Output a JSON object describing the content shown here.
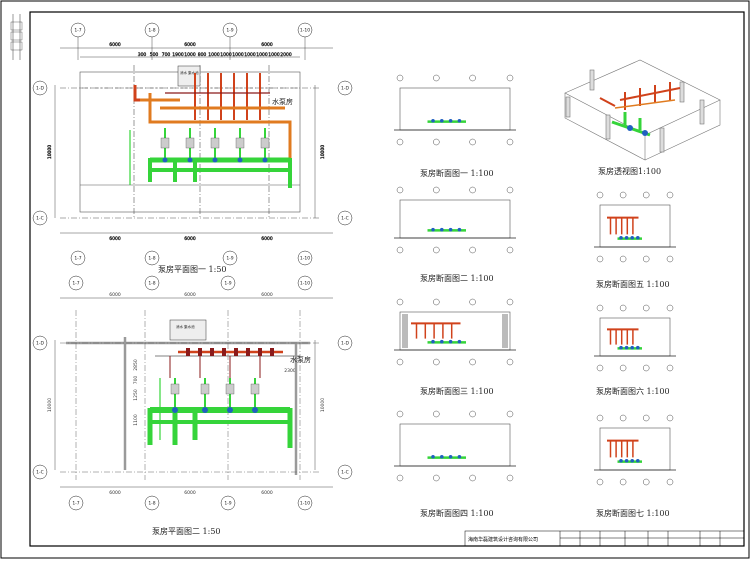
{
  "axes": {
    "plan1_top": [
      "1-7",
      "1-8",
      "1-9",
      "1-10"
    ],
    "plan1_side": [
      "1-D",
      "1-C"
    ],
    "plan2_top": [
      "1-7",
      "1-8",
      "1-9",
      "1-10"
    ],
    "plan2_side": [
      "1-D",
      "1-C"
    ]
  },
  "dims": {
    "p1_top": [
      "6000",
      "6000",
      "6000"
    ],
    "p1_sub": [
      "300",
      "500",
      "700",
      "1900",
      "1000",
      "800",
      "1000",
      "1000",
      "1000",
      "1000",
      "1000",
      "1000",
      "2000"
    ],
    "p1_left": "10000",
    "p1_right": "10000",
    "p1_bottom": [
      "6000",
      "6000",
      "6000"
    ],
    "p2_top": [
      "6000",
      "6000",
      "6000"
    ],
    "p2_left": "10000",
    "p2_right": "10000",
    "p2_bottom": [
      "6000",
      "6000",
      "6000"
    ],
    "p2_inner": [
      "2850",
      "700",
      "1250",
      "1100",
      "2300"
    ]
  },
  "room_labels": {
    "pump_room": "水泵房",
    "tank_p1": "消水\n集水池",
    "tank_p2": "消水\n集水池"
  },
  "captions": {
    "plan1": "泵房平面图一 1:50",
    "plan2": "泵房平面图二 1:50",
    "sec1": "泵房断面图一 1:100",
    "sec2": "泵房断面图二 1:100",
    "sec3": "泵房断面图三 1:100",
    "sec4": "泵房断面图四 1:100",
    "persp": "泵房透视图1:100",
    "sec5": "泵房断面图五 1:100",
    "sec6": "泵房断面图六 1:100",
    "sec7": "泵房断面图七 1:100"
  },
  "title_block": {
    "company": "海南华磊建筑设计咨询有限公司"
  },
  "colors": {
    "frame": "#000000",
    "hot_pipe": "#d0421b",
    "orange_pipe": "#e07b20",
    "green_pipe": "#35d43a",
    "grey_wall": "#9a9a9a",
    "blue_valve": "#2060c0",
    "dark_red": "#8a1a1a"
  }
}
